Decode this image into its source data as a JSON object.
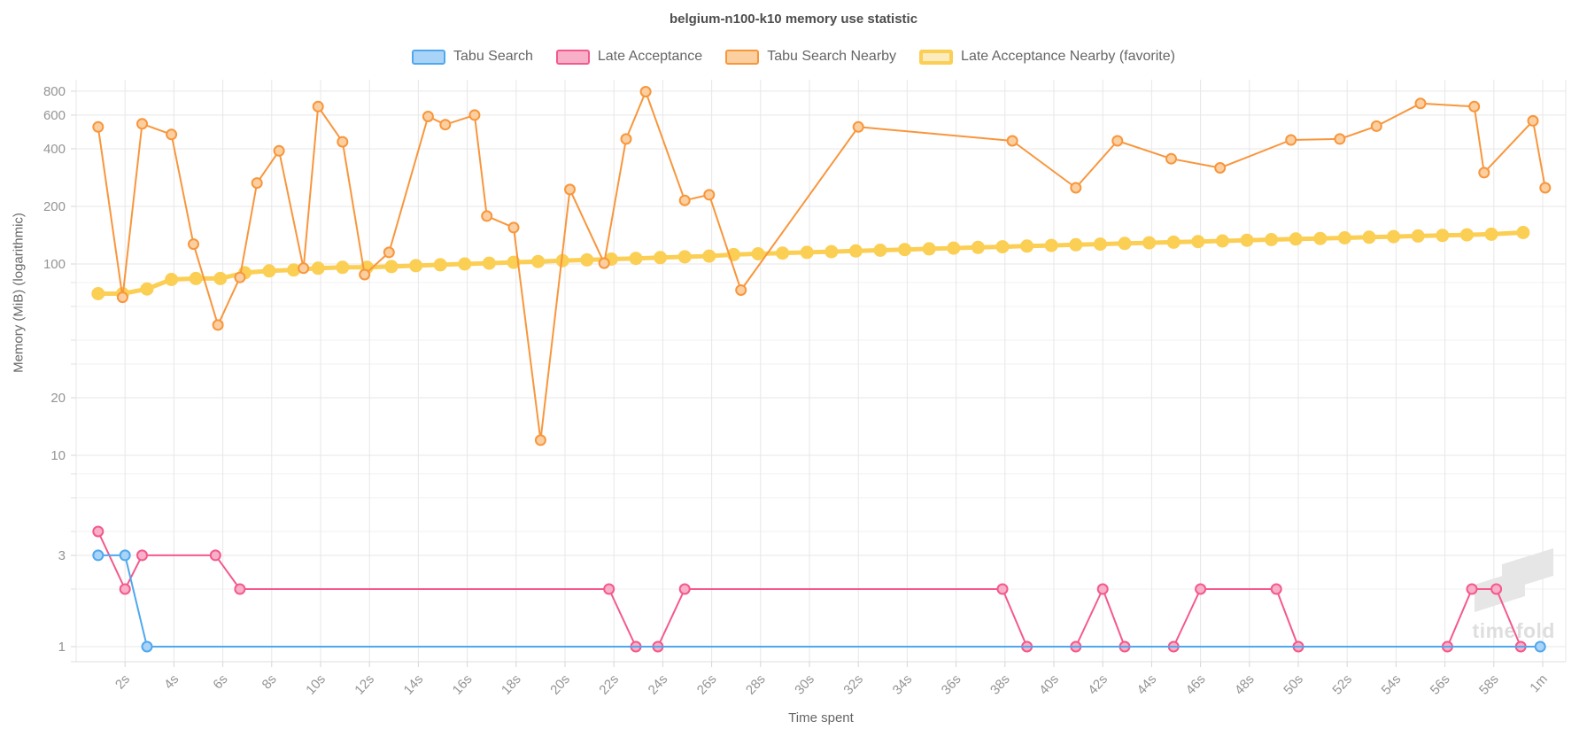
{
  "title": "belgium-n100-k10 memory use statistic",
  "watermark": {
    "text": "timefold"
  },
  "axes": {
    "x": {
      "title": "Time spent",
      "ticks": [
        {
          "t": 2,
          "label": "2s"
        },
        {
          "t": 4,
          "label": "4s"
        },
        {
          "t": 6,
          "label": "6s"
        },
        {
          "t": 8,
          "label": "8s"
        },
        {
          "t": 10,
          "label": "10s"
        },
        {
          "t": 12,
          "label": "12s"
        },
        {
          "t": 14,
          "label": "14s"
        },
        {
          "t": 16,
          "label": "16s"
        },
        {
          "t": 18,
          "label": "18s"
        },
        {
          "t": 20,
          "label": "20s"
        },
        {
          "t": 22,
          "label": "22s"
        },
        {
          "t": 24,
          "label": "24s"
        },
        {
          "t": 26,
          "label": "26s"
        },
        {
          "t": 28,
          "label": "28s"
        },
        {
          "t": 30,
          "label": "30s"
        },
        {
          "t": 32,
          "label": "32s"
        },
        {
          "t": 34,
          "label": "34s"
        },
        {
          "t": 36,
          "label": "36s"
        },
        {
          "t": 38,
          "label": "38s"
        },
        {
          "t": 40,
          "label": "40s"
        },
        {
          "t": 42,
          "label": "42s"
        },
        {
          "t": 44,
          "label": "44s"
        },
        {
          "t": 46,
          "label": "46s"
        },
        {
          "t": 48,
          "label": "48s"
        },
        {
          "t": 50,
          "label": "50s"
        },
        {
          "t": 52,
          "label": "52s"
        },
        {
          "t": 54,
          "label": "54s"
        },
        {
          "t": 56,
          "label": "56s"
        },
        {
          "t": 58,
          "label": "58s"
        },
        {
          "t": 60,
          "label": "1m"
        }
      ]
    },
    "y": {
      "title": "Memory (MiB) (logarithmic)",
      "scale": "log",
      "major_ticks": [
        {
          "v": 800,
          "label": "800"
        },
        {
          "v": 600,
          "label": "600"
        },
        {
          "v": 400,
          "label": "400"
        },
        {
          "v": 200,
          "label": "200"
        },
        {
          "v": 100,
          "label": "100"
        },
        {
          "v": 20,
          "label": "20"
        },
        {
          "v": 10,
          "label": "10"
        },
        {
          "v": 3,
          "label": "3"
        },
        {
          "v": 1,
          "label": "1"
        }
      ],
      "minor_ticks": [
        80,
        60,
        40,
        30,
        8,
        6,
        4,
        2
      ]
    }
  },
  "chart_data": {
    "type": "line",
    "title": "belgium-n100-k10 memory use statistic",
    "xlabel": "Time spent",
    "ylabel": "Memory (MiB) (logarithmic)",
    "x_unit": "seconds",
    "xlim": [
      0,
      61
    ],
    "ylim_log": [
      0.83,
      920
    ],
    "grid": true,
    "legend_position": "top",
    "series": [
      {
        "name": "Tabu Search",
        "color": "#4FA8EE",
        "fill": "#A9D4F7",
        "line_width": 2,
        "marker_radius": 5.5,
        "points": [
          [
            0.9,
            3
          ],
          [
            2,
            3
          ],
          [
            2.9,
            1
          ],
          [
            59.9,
            1
          ]
        ]
      },
      {
        "name": "Late Acceptance",
        "color": "#F4598B",
        "fill": "#F8B0C9",
        "line_width": 2,
        "marker_radius": 5.5,
        "points": [
          [
            0.9,
            4
          ],
          [
            2,
            2
          ],
          [
            2.7,
            3
          ],
          [
            5.7,
            3
          ],
          [
            6.7,
            2
          ],
          [
            21.8,
            2
          ],
          [
            22.9,
            1
          ],
          [
            23.8,
            1
          ],
          [
            24.9,
            2
          ],
          [
            37.9,
            2
          ],
          [
            38.9,
            1
          ],
          [
            40.9,
            1
          ],
          [
            42,
            2
          ],
          [
            42.9,
            1
          ],
          [
            44.9,
            1
          ],
          [
            46,
            2
          ],
          [
            49.1,
            2
          ],
          [
            50,
            1
          ],
          [
            56.1,
            1
          ],
          [
            57.1,
            2
          ],
          [
            58.1,
            2
          ],
          [
            59.1,
            1
          ]
        ]
      },
      {
        "name": "Tabu Search Nearby",
        "color": "#F8963C",
        "fill": "#FBCF9F",
        "line_width": 2,
        "marker_radius": 5.5,
        "points": [
          [
            0.9,
            520
          ],
          [
            1.9,
            67
          ],
          [
            2.7,
            540
          ],
          [
            3.9,
            475
          ],
          [
            4.8,
            127
          ],
          [
            5.8,
            48
          ],
          [
            6.7,
            85
          ],
          [
            7.4,
            265
          ],
          [
            8.3,
            390
          ],
          [
            9.3,
            95
          ],
          [
            9.9,
            665
          ],
          [
            10.9,
            435
          ],
          [
            11.8,
            88
          ],
          [
            12.8,
            115
          ],
          [
            14.4,
            590
          ],
          [
            15.1,
            535
          ],
          [
            16.3,
            600
          ],
          [
            16.8,
            178
          ],
          [
            17.9,
            155
          ],
          [
            19,
            12
          ],
          [
            20.2,
            245
          ],
          [
            21.6,
            101
          ],
          [
            22.5,
            450
          ],
          [
            23.3,
            795
          ],
          [
            24.9,
            215
          ],
          [
            25.9,
            230
          ],
          [
            27.2,
            73
          ],
          [
            32,
            520
          ],
          [
            38.3,
            440
          ],
          [
            40.9,
            250
          ],
          [
            42.6,
            440
          ],
          [
            44.8,
            355
          ],
          [
            46.8,
            318
          ],
          [
            49.7,
            445
          ],
          [
            51.7,
            450
          ],
          [
            53.2,
            525
          ],
          [
            55,
            690
          ],
          [
            57.2,
            665
          ],
          [
            57.6,
            300
          ],
          [
            59.6,
            560
          ],
          [
            60.1,
            250
          ]
        ]
      },
      {
        "name": "Late Acceptance Nearby (favorite)",
        "color": "#FBCE54",
        "fill": "#FCEBBC",
        "favorite": true,
        "line_width": 5,
        "marker_radius": 7.5,
        "points": [
          [
            0.9,
            70
          ],
          [
            1.9,
            70
          ],
          [
            2.9,
            74
          ],
          [
            3.9,
            83
          ],
          [
            4.9,
            84
          ],
          [
            5.9,
            84
          ],
          [
            6.9,
            90
          ],
          [
            7.9,
            92
          ],
          [
            8.9,
            93
          ],
          [
            9.9,
            95
          ],
          [
            10.9,
            96
          ],
          [
            11.9,
            96
          ],
          [
            12.9,
            97
          ],
          [
            13.9,
            98
          ],
          [
            14.9,
            99
          ],
          [
            15.9,
            100
          ],
          [
            16.9,
            101
          ],
          [
            17.9,
            102
          ],
          [
            18.9,
            103
          ],
          [
            19.9,
            104
          ],
          [
            20.9,
            105
          ],
          [
            21.9,
            106
          ],
          [
            22.9,
            107
          ],
          [
            23.9,
            108
          ],
          [
            24.9,
            109
          ],
          [
            25.9,
            110
          ],
          [
            26.9,
            112
          ],
          [
            27.9,
            113
          ],
          [
            28.9,
            114
          ],
          [
            29.9,
            115
          ],
          [
            30.9,
            116
          ],
          [
            31.9,
            117
          ],
          [
            32.9,
            118
          ],
          [
            33.9,
            119
          ],
          [
            34.9,
            120
          ],
          [
            35.9,
            121
          ],
          [
            36.9,
            122
          ],
          [
            37.9,
            123
          ],
          [
            38.9,
            124
          ],
          [
            39.9,
            125
          ],
          [
            40.9,
            126
          ],
          [
            41.9,
            127
          ],
          [
            42.9,
            128
          ],
          [
            43.9,
            129
          ],
          [
            44.9,
            130
          ],
          [
            45.9,
            131
          ],
          [
            46.9,
            132
          ],
          [
            47.9,
            133
          ],
          [
            48.9,
            134
          ],
          [
            49.9,
            135
          ],
          [
            50.9,
            136
          ],
          [
            51.9,
            137
          ],
          [
            52.9,
            138
          ],
          [
            53.9,
            139
          ],
          [
            54.9,
            140
          ],
          [
            55.9,
            141
          ],
          [
            56.9,
            142
          ],
          [
            57.9,
            143
          ],
          [
            59.2,
            146
          ]
        ]
      }
    ]
  }
}
